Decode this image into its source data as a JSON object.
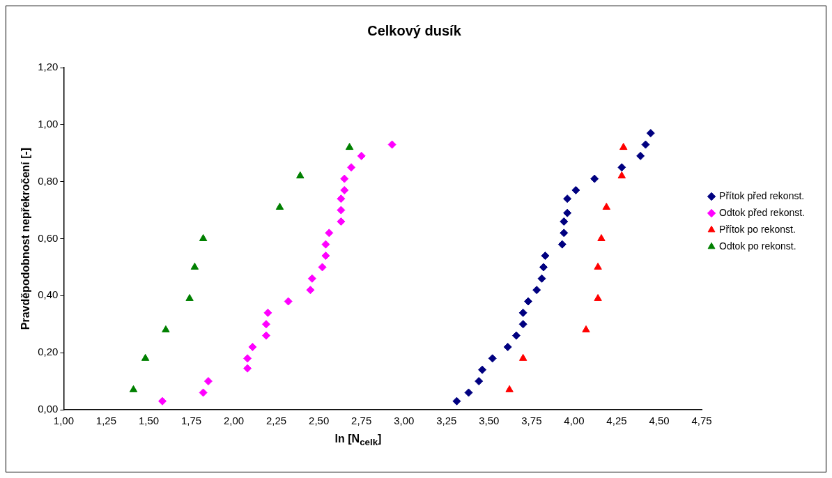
{
  "chart_data": {
    "type": "scatter",
    "title": "Celkový dusík",
    "xlabel": "ln [N$_{celk}$]",
    "ylabel": "Pravděpodobnost nepřekročení [-]",
    "xlim": [
      1,
      4.75
    ],
    "xticks": [
      {
        "value": 1,
        "label": "1,00"
      },
      {
        "value": 1.25,
        "label": "1,25"
      },
      {
        "value": 1.5,
        "label": "1,50"
      },
      {
        "value": 1.75,
        "label": "1,75"
      },
      {
        "value": 2,
        "label": "2,00"
      },
      {
        "value": 2.25,
        "label": "2,25"
      },
      {
        "value": 2.5,
        "label": "2,50"
      },
      {
        "value": 2.75,
        "label": "2,75"
      },
      {
        "value": 3,
        "label": "3,00"
      },
      {
        "value": 3.25,
        "label": "3,25"
      },
      {
        "value": 3.5,
        "label": "3,50"
      },
      {
        "value": 3.75,
        "label": "3,75"
      },
      {
        "value": 4,
        "label": "4,00"
      },
      {
        "value": 4.25,
        "label": "4,25"
      },
      {
        "value": 4.5,
        "label": "4,50"
      },
      {
        "value": 4.75,
        "label": "4,75"
      }
    ],
    "ylim": [
      0,
      1.2
    ],
    "yticks": [
      {
        "value": 0,
        "label": "0,00"
      },
      {
        "value": 0.2,
        "label": "0,20"
      },
      {
        "value": 0.4,
        "label": "0,40"
      },
      {
        "value": 0.6,
        "label": "0,60"
      },
      {
        "value": 0.8,
        "label": "0,80"
      },
      {
        "value": 1,
        "label": "1,00"
      },
      {
        "value": 1.2,
        "label": "1,20"
      }
    ],
    "legend": "right",
    "series": [
      {
        "name": "Přítok před rekonst.",
        "color": "#000080",
        "marker": "diamond",
        "x": [
          3.31,
          3.38,
          3.44,
          3.46,
          3.52,
          3.61,
          3.66,
          3.7,
          3.7,
          3.73,
          3.78,
          3.81,
          3.82,
          3.83,
          3.93,
          3.94,
          3.94,
          3.96,
          3.96,
          4.01,
          4.12,
          4.28,
          4.39,
          4.42,
          4.45
        ],
        "values": [
          0.03,
          0.06,
          0.1,
          0.14,
          0.18,
          0.22,
          0.26,
          0.3,
          0.34,
          0.38,
          0.42,
          0.46,
          0.5,
          0.54,
          0.58,
          0.62,
          0.66,
          0.69,
          0.74,
          0.77,
          0.81,
          0.85,
          0.89,
          0.93,
          0.97
        ]
      },
      {
        "name": "Odtok před rekonst.",
        "color": "#ff00ff",
        "marker": "diamond",
        "x": [
          1.58,
          1.82,
          1.85,
          2.08,
          2.08,
          2.11,
          2.19,
          2.19,
          2.2,
          2.32,
          2.45,
          2.46,
          2.52,
          2.54,
          2.54,
          2.56,
          2.63,
          2.63,
          2.63,
          2.65,
          2.65,
          2.69,
          2.75,
          2.93
        ],
        "values": [
          0.03,
          0.06,
          0.1,
          0.145,
          0.18,
          0.22,
          0.26,
          0.3,
          0.34,
          0.38,
          0.42,
          0.46,
          0.5,
          0.54,
          0.58,
          0.62,
          0.66,
          0.7,
          0.74,
          0.77,
          0.81,
          0.85,
          0.89,
          0.93
        ]
      },
      {
        "name": "Přítok po rekonst.",
        "color": "#ff0000",
        "marker": "triangle",
        "x": [
          3.62,
          3.7,
          4.07,
          4.14,
          4.14,
          4.16,
          4.19,
          4.28,
          4.29
        ],
        "values": [
          0.07,
          0.18,
          0.28,
          0.39,
          0.5,
          0.6,
          0.71,
          0.82,
          0.92
        ]
      },
      {
        "name": "Odtok po rekonst.",
        "color": "#008000",
        "marker": "triangle",
        "x": [
          1.41,
          1.48,
          1.6,
          1.74,
          1.77,
          1.82,
          2.27,
          2.39,
          2.68
        ],
        "values": [
          0.07,
          0.18,
          0.28,
          0.39,
          0.5,
          0.6,
          0.71,
          0.82,
          0.92
        ]
      }
    ]
  }
}
